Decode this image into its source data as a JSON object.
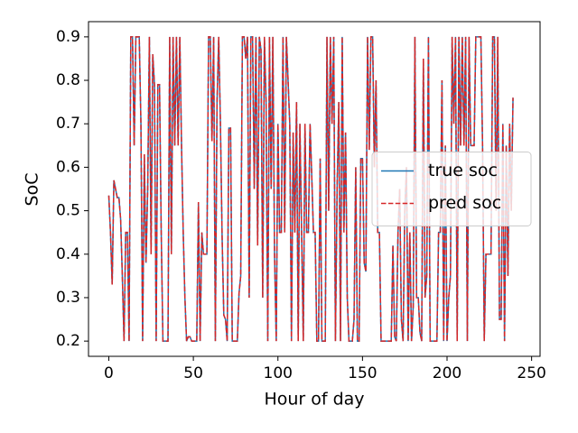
{
  "chart_data": {
    "type": "line",
    "xlabel": "Hour of day",
    "ylabel": "SoC",
    "xlim": [
      -12,
      255
    ],
    "ylim": [
      0.165,
      0.935
    ],
    "xticks": [
      0,
      50,
      100,
      150,
      200,
      250
    ],
    "yticks": [
      0.2,
      0.3,
      0.4,
      0.5,
      0.6,
      0.7,
      0.8,
      0.9
    ],
    "legend": "center right",
    "x": [
      0,
      1,
      2,
      3,
      4,
      5,
      6,
      7,
      8,
      9,
      10,
      11,
      12,
      13,
      14,
      15,
      16,
      17,
      18,
      19,
      20,
      21,
      22,
      23,
      24,
      25,
      26,
      27,
      28,
      29,
      30,
      31,
      32,
      33,
      34,
      35,
      36,
      37,
      38,
      39,
      40,
      41,
      42,
      43,
      44,
      45,
      46,
      47,
      48,
      49,
      50,
      51,
      52,
      53,
      54,
      55,
      56,
      57,
      58,
      59,
      60,
      61,
      62,
      63,
      64,
      65,
      66,
      67,
      68,
      69,
      70,
      71,
      72,
      73,
      74,
      75,
      76,
      77,
      78,
      79,
      80,
      81,
      82,
      83,
      84,
      85,
      86,
      87,
      88,
      89,
      90,
      91,
      92,
      93,
      94,
      95,
      96,
      97,
      98,
      99,
      100,
      101,
      102,
      103,
      104,
      105,
      106,
      107,
      108,
      109,
      110,
      111,
      112,
      113,
      114,
      115,
      116,
      117,
      118,
      119,
      120,
      121,
      122,
      123,
      124,
      125,
      126,
      127,
      128,
      129,
      130,
      131,
      132,
      133,
      134,
      135,
      136,
      137,
      138,
      139,
      140,
      141,
      142,
      143,
      144,
      145,
      146,
      147,
      148,
      149,
      150,
      151,
      152,
      153,
      154,
      155,
      156,
      157,
      158,
      159,
      160,
      161,
      162,
      163,
      164,
      165,
      166,
      167,
      168,
      169,
      170,
      171,
      172,
      173,
      174,
      175,
      176,
      177,
      178,
      179,
      180,
      181,
      182,
      183,
      184,
      185,
      186,
      187,
      188,
      189,
      190,
      191,
      192,
      193,
      194,
      195,
      196,
      197,
      198,
      199,
      200,
      201,
      202,
      203,
      204,
      205,
      206,
      207,
      208,
      209,
      210,
      211,
      212,
      213,
      214,
      215,
      216,
      217,
      218,
      219,
      220,
      221,
      222,
      223,
      224,
      225,
      226,
      227,
      228,
      229,
      230,
      231,
      232,
      233,
      234,
      235,
      236,
      237,
      238,
      239
    ],
    "series": [
      {
        "name": "true soc",
        "color": "#1f77b4",
        "linestyle": "solid",
        "values": [
          0.535,
          0.45,
          0.33,
          0.57,
          0.55,
          0.53,
          0.53,
          0.48,
          0.35,
          0.2,
          0.45,
          0.45,
          0.2,
          0.9,
          0.9,
          0.65,
          0.9,
          0.9,
          0.9,
          0.7,
          0.2,
          0.63,
          0.38,
          0.55,
          0.9,
          0.4,
          0.86,
          0.79,
          0.2,
          0.79,
          0.79,
          0.45,
          0.2,
          0.2,
          0.2,
          0.2,
          0.9,
          0.4,
          0.9,
          0.65,
          0.9,
          0.65,
          0.9,
          0.65,
          0.45,
          0.3,
          0.2,
          0.21,
          0.21,
          0.2,
          0.2,
          0.2,
          0.2,
          0.52,
          0.2,
          0.45,
          0.4,
          0.4,
          0.4,
          0.9,
          0.9,
          0.66,
          0.9,
          0.2,
          0.75,
          0.9,
          0.7,
          0.44,
          0.26,
          0.25,
          0.2,
          0.69,
          0.69,
          0.2,
          0.2,
          0.2,
          0.2,
          0.31,
          0.35,
          0.9,
          0.9,
          0.85,
          0.9,
          0.3,
          0.9,
          0.9,
          0.55,
          0.9,
          0.42,
          0.9,
          0.87,
          0.3,
          0.9,
          0.75,
          0.2,
          0.9,
          0.55,
          0.9,
          0.4,
          0.2,
          0.7,
          0.45,
          0.45,
          0.9,
          0.45,
          0.9,
          0.8,
          0.7,
          0.2,
          0.68,
          0.45,
          0.75,
          0.2,
          0.7,
          0.45,
          0.2,
          0.7,
          0.45,
          0.45,
          0.7,
          0.58,
          0.45,
          0.45,
          0.2,
          0.2,
          0.62,
          0.2,
          0.2,
          0.2,
          0.9,
          0.5,
          0.9,
          0.7,
          0.9,
          0.2,
          0.55,
          0.75,
          0.2,
          0.9,
          0.45,
          0.68,
          0.3,
          0.2,
          0.2,
          0.2,
          0.25,
          0.6,
          0.2,
          0.2,
          0.62,
          0.62,
          0.38,
          0.36,
          0.9,
          0.64,
          0.9,
          0.9,
          0.6,
          0.8,
          0.45,
          0.45,
          0.2,
          0.2,
          0.2,
          0.2,
          0.2,
          0.2,
          0.2,
          0.42,
          0.21,
          0.2,
          0.45,
          0.55,
          0.25,
          0.2,
          0.5,
          0.6,
          0.2,
          0.45,
          0.2,
          0.28,
          0.9,
          0.3,
          0.3,
          0.22,
          0.2,
          0.85,
          0.3,
          0.35,
          0.9,
          0.2,
          0.2,
          0.2,
          0.2,
          0.2,
          0.45,
          0.45,
          0.8,
          0.2,
          0.65,
          0.2,
          0.3,
          0.35,
          0.9,
          0.7,
          0.9,
          0.2,
          0.9,
          0.65,
          0.9,
          0.65,
          0.9,
          0.2,
          0.9,
          0.65,
          0.65,
          0.65,
          0.9,
          0.9,
          0.9,
          0.9,
          0.65,
          0.2,
          0.4,
          0.4,
          0.4,
          0.4,
          0.9,
          0.9,
          0.5,
          0.9,
          0.25,
          0.25,
          0.7,
          0.2,
          0.65,
          0.35,
          0.7,
          0.5,
          0.76
        ]
      },
      {
        "name": "pred soc",
        "color": "#d62728",
        "linestyle": "dashed",
        "values": [
          0.535,
          0.45,
          0.33,
          0.57,
          0.55,
          0.53,
          0.53,
          0.48,
          0.35,
          0.2,
          0.45,
          0.45,
          0.2,
          0.9,
          0.9,
          0.65,
          0.9,
          0.9,
          0.9,
          0.7,
          0.2,
          0.63,
          0.38,
          0.55,
          0.9,
          0.4,
          0.86,
          0.79,
          0.2,
          0.79,
          0.79,
          0.45,
          0.2,
          0.2,
          0.2,
          0.2,
          0.9,
          0.4,
          0.9,
          0.65,
          0.9,
          0.65,
          0.9,
          0.65,
          0.45,
          0.3,
          0.2,
          0.21,
          0.21,
          0.2,
          0.2,
          0.2,
          0.2,
          0.52,
          0.2,
          0.45,
          0.4,
          0.4,
          0.4,
          0.9,
          0.9,
          0.66,
          0.9,
          0.2,
          0.75,
          0.9,
          0.7,
          0.44,
          0.26,
          0.25,
          0.2,
          0.69,
          0.69,
          0.2,
          0.2,
          0.2,
          0.2,
          0.31,
          0.35,
          0.9,
          0.9,
          0.85,
          0.9,
          0.3,
          0.9,
          0.9,
          0.55,
          0.9,
          0.42,
          0.9,
          0.87,
          0.3,
          0.9,
          0.75,
          0.2,
          0.9,
          0.55,
          0.9,
          0.4,
          0.2,
          0.7,
          0.45,
          0.45,
          0.9,
          0.45,
          0.9,
          0.8,
          0.7,
          0.2,
          0.68,
          0.45,
          0.75,
          0.2,
          0.7,
          0.45,
          0.2,
          0.7,
          0.45,
          0.45,
          0.7,
          0.58,
          0.45,
          0.45,
          0.2,
          0.2,
          0.62,
          0.2,
          0.2,
          0.2,
          0.9,
          0.5,
          0.9,
          0.7,
          0.9,
          0.2,
          0.55,
          0.75,
          0.2,
          0.9,
          0.45,
          0.68,
          0.3,
          0.2,
          0.2,
          0.2,
          0.25,
          0.6,
          0.2,
          0.2,
          0.62,
          0.62,
          0.38,
          0.36,
          0.9,
          0.64,
          0.9,
          0.9,
          0.6,
          0.8,
          0.45,
          0.45,
          0.2,
          0.2,
          0.2,
          0.2,
          0.2,
          0.2,
          0.2,
          0.42,
          0.21,
          0.2,
          0.45,
          0.55,
          0.25,
          0.2,
          0.5,
          0.6,
          0.2,
          0.45,
          0.2,
          0.28,
          0.9,
          0.3,
          0.3,
          0.22,
          0.2,
          0.85,
          0.3,
          0.35,
          0.9,
          0.2,
          0.2,
          0.2,
          0.2,
          0.2,
          0.45,
          0.45,
          0.8,
          0.2,
          0.65,
          0.2,
          0.3,
          0.35,
          0.9,
          0.7,
          0.9,
          0.2,
          0.9,
          0.65,
          0.9,
          0.65,
          0.9,
          0.2,
          0.9,
          0.65,
          0.65,
          0.65,
          0.9,
          0.9,
          0.9,
          0.9,
          0.65,
          0.2,
          0.4,
          0.4,
          0.4,
          0.4,
          0.9,
          0.9,
          0.5,
          0.9,
          0.25,
          0.25,
          0.7,
          0.2,
          0.65,
          0.35,
          0.7,
          0.5,
          0.76
        ]
      }
    ]
  }
}
